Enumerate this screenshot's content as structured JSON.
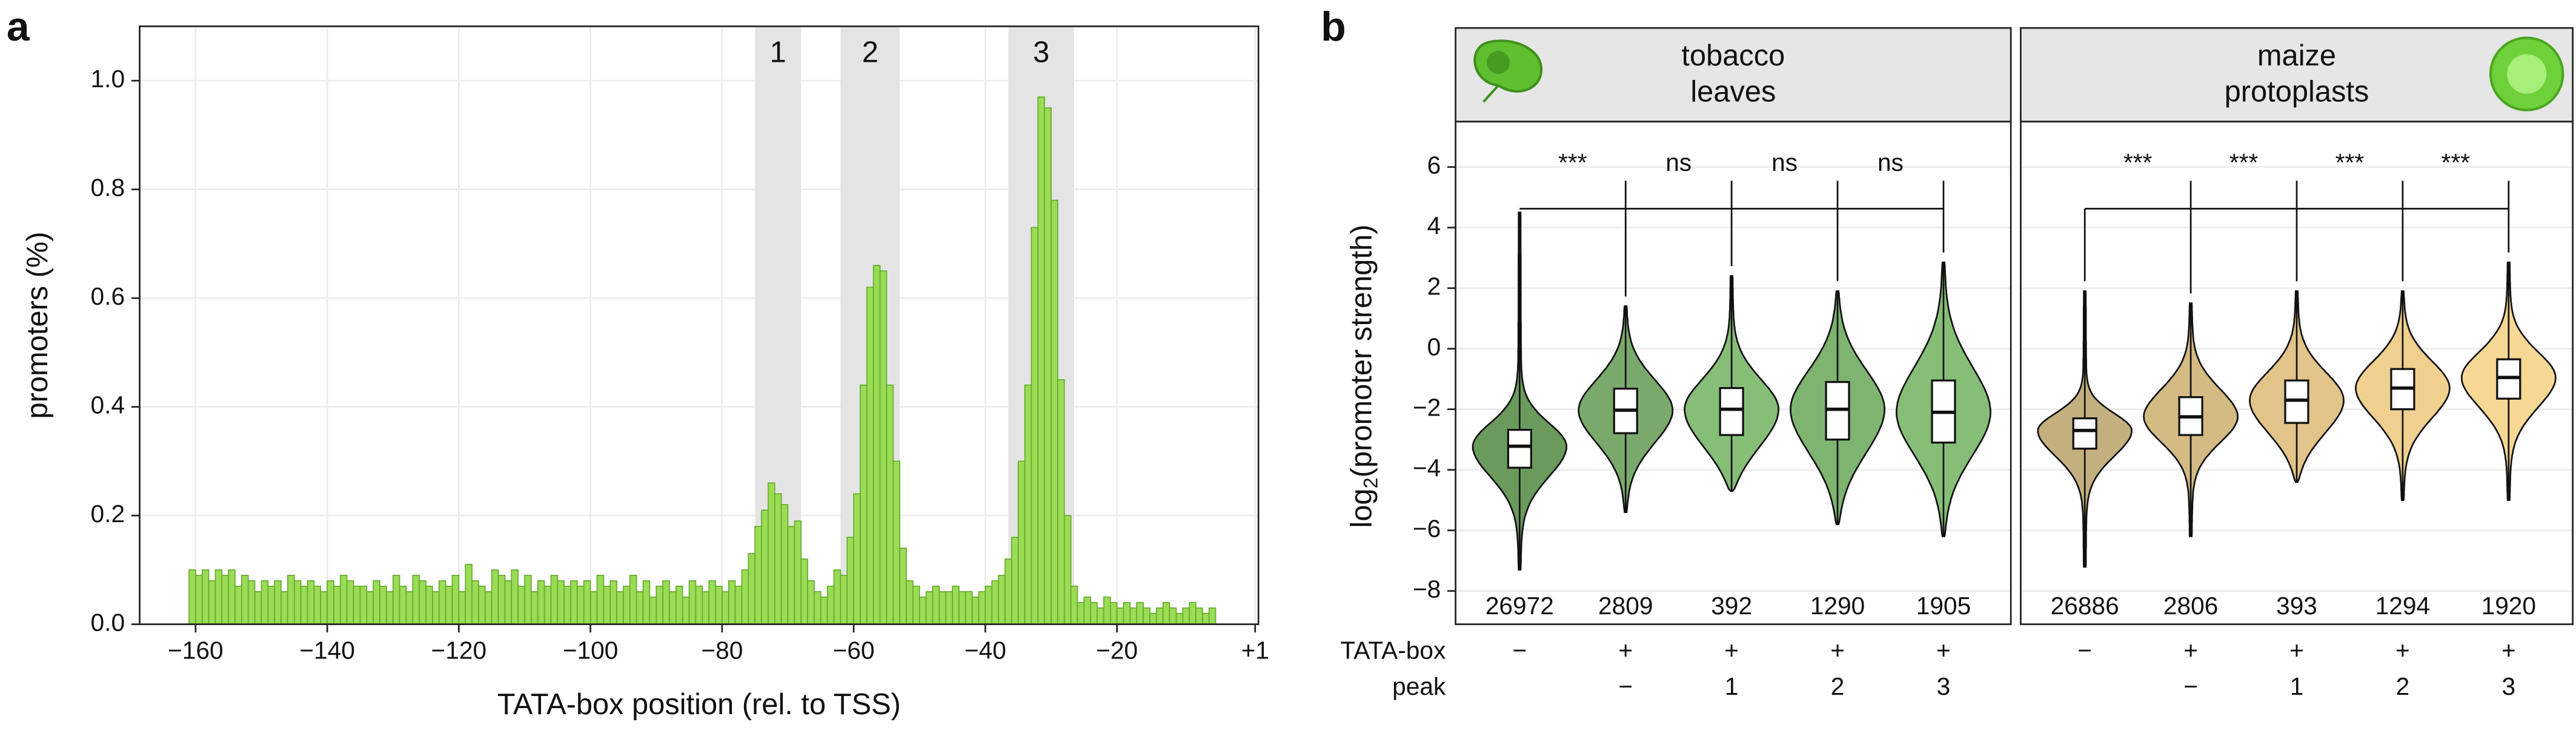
{
  "chart_data": [
    {
      "type": "histogram",
      "panel_label": "a",
      "xlabel": "TATA-box position (rel. to TSS)",
      "ylabel": "promoters (%)",
      "xlim": [
        -168.5,
        1.5
      ],
      "ylim": [
        0,
        1.1
      ],
      "xticks": [
        {
          "value": -160,
          "label": "−160"
        },
        {
          "value": -140,
          "label": "−140"
        },
        {
          "value": -120,
          "label": "−120"
        },
        {
          "value": -100,
          "label": "−100"
        },
        {
          "value": -80,
          "label": "−80"
        },
        {
          "value": -60,
          "label": "−60"
        },
        {
          "value": -40,
          "label": "−40"
        },
        {
          "value": -20,
          "label": "−20"
        },
        {
          "value": 1,
          "label": "+1"
        }
      ],
      "yticks": [
        {
          "value": 0,
          "label": "0.0"
        },
        {
          "value": 0.2,
          "label": "0.2"
        },
        {
          "value": 0.4,
          "label": "0.4"
        },
        {
          "value": 0.6,
          "label": "0.6"
        },
        {
          "value": 0.8,
          "label": "0.8"
        },
        {
          "value": 1.0,
          "label": "1.0"
        }
      ],
      "grid": true,
      "color": "#9bdc55",
      "edge_color": "#62a82c",
      "region_color": "#e4e4e4",
      "regions": [
        {
          "label": "1",
          "range": [
            -75,
            -68
          ]
        },
        {
          "label": "2",
          "range": [
            -62,
            -53
          ]
        },
        {
          "label": "3",
          "range": [
            -36.5,
            -26.5
          ]
        }
      ],
      "bins": [
        -161,
        -160,
        -159,
        -158,
        -157,
        -156,
        -155,
        -154,
        -153,
        -152,
        -151,
        -150,
        -149,
        -148,
        -147,
        -146,
        -145,
        -144,
        -143,
        -142,
        -141,
        -140,
        -139,
        -138,
        -137,
        -136,
        -135,
        -134,
        -133,
        -132,
        -131,
        -130,
        -129,
        -128,
        -127,
        -126,
        -125,
        -124,
        -123,
        -122,
        -121,
        -120,
        -119,
        -118,
        -117,
        -116,
        -115,
        -114,
        -113,
        -112,
        -111,
        -110,
        -109,
        -108,
        -107,
        -106,
        -105,
        -104,
        -103,
        -102,
        -101,
        -100,
        -99,
        -98,
        -97,
        -96,
        -95,
        -94,
        -93,
        -92,
        -91,
        -90,
        -89,
        -88,
        -87,
        -86,
        -85,
        -84,
        -83,
        -82,
        -81,
        -80,
        -79,
        -78,
        -77,
        -76,
        -75,
        -74,
        -73,
        -72,
        -71,
        -70,
        -69,
        -68,
        -67,
        -66,
        -65,
        -64,
        -63,
        -62,
        -61,
        -60,
        -59,
        -58,
        -57,
        -56,
        -55,
        -54,
        -53,
        -52,
        -51,
        -50,
        -49,
        -48,
        -47,
        -46,
        -45,
        -44,
        -43,
        -42,
        -41,
        -40,
        -39,
        -38,
        -37,
        -36,
        -35,
        -34,
        -33,
        -32,
        -31,
        -30,
        -29,
        -28,
        -27,
        -26,
        -25,
        -24,
        -23,
        -22,
        -21,
        -20,
        -19,
        -18,
        -17,
        -16,
        -15,
        -14,
        -13,
        -12,
        -11,
        -10,
        -9,
        -8,
        -7,
        -6,
        -5
      ],
      "values": [
        0.1,
        0.09,
        0.1,
        0.08,
        0.1,
        0.09,
        0.1,
        0.07,
        0.09,
        0.08,
        0.06,
        0.08,
        0.07,
        0.08,
        0.06,
        0.09,
        0.08,
        0.07,
        0.08,
        0.07,
        0.06,
        0.08,
        0.07,
        0.09,
        0.08,
        0.07,
        0.07,
        0.06,
        0.08,
        0.07,
        0.06,
        0.09,
        0.07,
        0.06,
        0.09,
        0.08,
        0.07,
        0.06,
        0.08,
        0.07,
        0.09,
        0.06,
        0.11,
        0.08,
        0.07,
        0.06,
        0.1,
        0.09,
        0.08,
        0.1,
        0.07,
        0.09,
        0.06,
        0.08,
        0.07,
        0.09,
        0.08,
        0.07,
        0.08,
        0.07,
        0.08,
        0.06,
        0.09,
        0.07,
        0.08,
        0.06,
        0.07,
        0.09,
        0.06,
        0.08,
        0.05,
        0.07,
        0.08,
        0.06,
        0.07,
        0.05,
        0.08,
        0.07,
        0.06,
        0.08,
        0.07,
        0.06,
        0.08,
        0.07,
        0.1,
        0.13,
        0.18,
        0.21,
        0.26,
        0.24,
        0.22,
        0.18,
        0.19,
        0.12,
        0.08,
        0.06,
        0.05,
        0.07,
        0.1,
        0.09,
        0.16,
        0.24,
        0.44,
        0.62,
        0.66,
        0.65,
        0.44,
        0.3,
        0.14,
        0.08,
        0.07,
        0.05,
        0.06,
        0.07,
        0.06,
        0.06,
        0.07,
        0.06,
        0.06,
        0.05,
        0.06,
        0.07,
        0.08,
        0.09,
        0.12,
        0.16,
        0.3,
        0.44,
        0.73,
        0.97,
        0.95,
        0.78,
        0.45,
        0.2,
        0.07,
        0.04,
        0.05,
        0.04,
        0.03,
        0.05,
        0.04,
        0.03,
        0.04,
        0.03,
        0.04,
        0.03,
        0.02,
        0.03,
        0.04,
        0.03,
        0.02,
        0.03,
        0.04,
        0.03,
        0.02,
        0.03
      ]
    },
    {
      "type": "violin",
      "panel_label": "b",
      "ylabel": {
        "text": "log",
        "sub": "2",
        "rest": "(promoter strength)"
      },
      "ylim": [
        -9.1,
        7.5
      ],
      "yticks": [
        {
          "value": -8,
          "label": "−8"
        },
        {
          "value": -6,
          "label": "−6"
        },
        {
          "value": -4,
          "label": "−4"
        },
        {
          "value": -2,
          "label": "−2"
        },
        0,
        2,
        4,
        6
      ],
      "grid": true,
      "row_labels": [
        "TATA-box",
        "peak"
      ],
      "panels": [
        {
          "title": [
            "tobacco",
            "leaves"
          ],
          "icon": "leaf",
          "significance": [
            "***",
            "ns",
            "ns",
            "ns"
          ],
          "groups": [
            {
              "min": -7.3,
              "q1": -3.93,
              "median": -3.22,
              "q3": -2.68,
              "max": 4.5,
              "n": 26972,
              "color": "#6a9a5c",
              "tata": "−",
              "peak": null
            },
            {
              "min": -5.4,
              "q1": -2.79,
              "median": -2.03,
              "q3": -1.32,
              "max": 1.4,
              "n": 2809,
              "color": "#7aa96c",
              "tata": "+",
              "peak": "−"
            },
            {
              "min": -4.7,
              "q1": -2.85,
              "median": -2.0,
              "q3": -1.3,
              "max": 2.4,
              "n": 392,
              "color": "#86bd77",
              "tata": "+",
              "peak": "1"
            },
            {
              "min": -5.8,
              "q1": -3.0,
              "median": -2.0,
              "q3": -1.1,
              "max": 1.9,
              "n": 1290,
              "color": "#7eb46f",
              "tata": "+",
              "peak": "2"
            },
            {
              "min": -6.2,
              "q1": -3.1,
              "median": -2.1,
              "q3": -1.05,
              "max": 2.85,
              "n": 1905,
              "color": "#86be77",
              "tata": "+",
              "peak": "3"
            }
          ]
        },
        {
          "title": [
            "maize",
            "protoplasts"
          ],
          "icon": "cell",
          "significance": [
            "***",
            "***",
            "***",
            "***"
          ],
          "groups": [
            {
              "min": -7.2,
              "q1": -3.3,
              "median": -2.7,
              "q3": -2.3,
              "max": 1.9,
              "n": 26886,
              "color": "#c4b07e",
              "tata": "−",
              "peak": null
            },
            {
              "min": -6.2,
              "q1": -2.85,
              "median": -2.25,
              "q3": -1.6,
              "max": 1.5,
              "n": 2806,
              "color": "#d3bb83",
              "tata": "+",
              "peak": "−"
            },
            {
              "min": -4.4,
              "q1": -2.45,
              "median": -1.7,
              "q3": -1.05,
              "max": 1.9,
              "n": 393,
              "color": "#e2c48a",
              "tata": "+",
              "peak": "1"
            },
            {
              "min": -5.0,
              "q1": -2.0,
              "median": -1.3,
              "q3": -0.67,
              "max": 1.9,
              "n": 1294,
              "color": "#f0d08f",
              "tata": "+",
              "peak": "2"
            },
            {
              "min": -5.0,
              "q1": -1.65,
              "median": -0.95,
              "q3": -0.35,
              "max": 2.85,
              "n": 1920,
              "color": "#f7d794",
              "tata": "+",
              "peak": "3"
            }
          ]
        }
      ]
    }
  ]
}
